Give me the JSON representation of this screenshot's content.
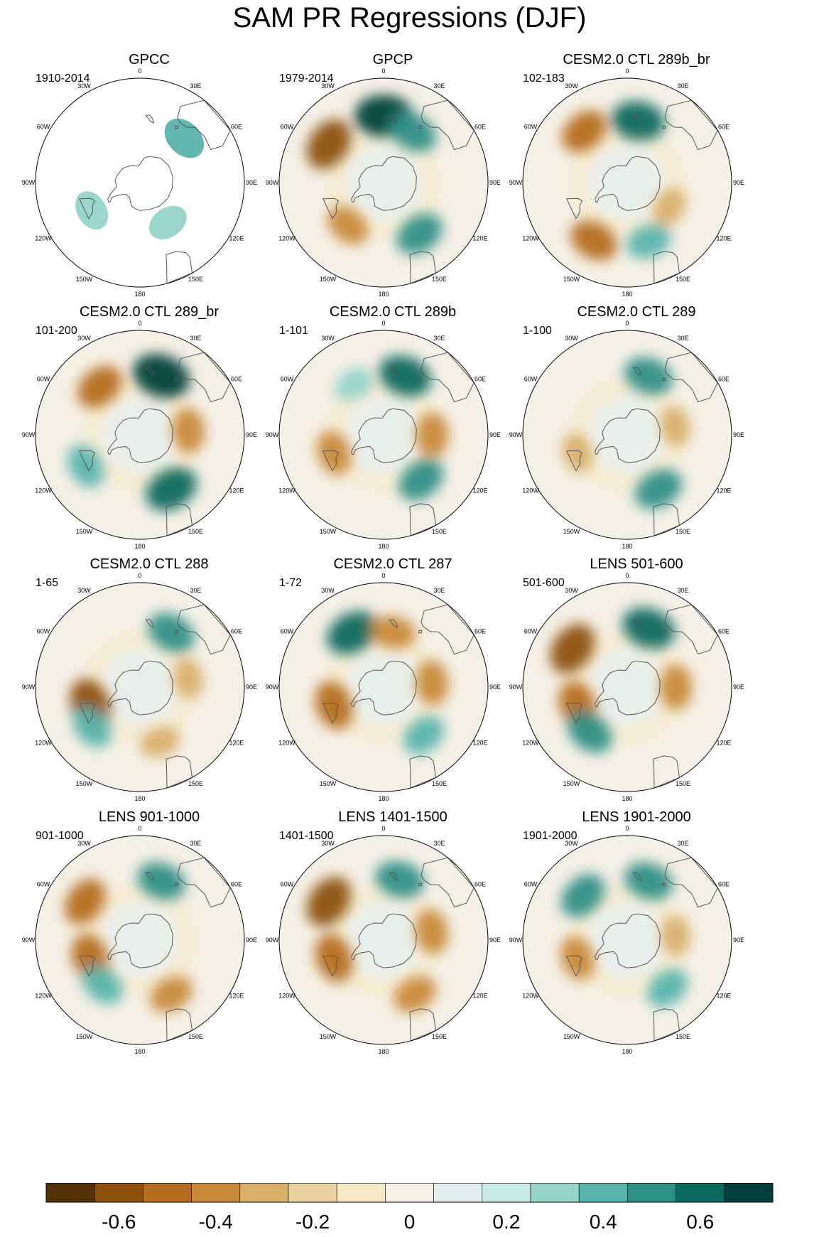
{
  "figure": {
    "title": "SAM PR Regressions (DJF)"
  },
  "chart_data": {
    "type": "heatmap",
    "projection": "south polar stereographic",
    "variable": "PR",
    "season": "DJF",
    "longitude_labels": [
      "0",
      "30E",
      "60E",
      "90E",
      "120E",
      "150E",
      "180",
      "150W",
      "120W",
      "90W",
      "60W",
      "30W"
    ],
    "colorbar": {
      "levels": [
        -0.7,
        -0.6,
        -0.5,
        -0.4,
        -0.3,
        -0.2,
        -0.1,
        0,
        0.1,
        0.2,
        0.3,
        0.4,
        0.5,
        0.6,
        0.7
      ],
      "tick_labels": [
        "-0.6",
        "-0.4",
        "-0.2",
        "0",
        "0.2",
        "0.4",
        "0.6"
      ],
      "tick_values": [
        -0.6,
        -0.4,
        -0.2,
        0,
        0.2,
        0.4,
        0.6
      ],
      "colors": [
        "#543005",
        "#8c510a",
        "#b56d20",
        "#c8893a",
        "#d8b06c",
        "#ead3a0",
        "#f6e8c3",
        "#f5f0e6",
        "#e0efee",
        "#c7eae5",
        "#96d4ca",
        "#5ab4ac",
        "#2e8f85",
        "#0a6a5e",
        "#01403a"
      ]
    },
    "panels": [
      {
        "name": "GPCC",
        "period": "1910-2014",
        "land_only": true,
        "features": [
          {
            "lon": 35,
            "lat": -55,
            "value": 0.3
          },
          {
            "lon": -60,
            "lat": -50,
            "value": 0.3
          },
          {
            "lon": 135,
            "lat": -45,
            "value": 0.4
          }
        ]
      },
      {
        "name": "GPCP",
        "period": "1979-2014",
        "features": [
          {
            "lon": 180,
            "lat": -42,
            "value": 0.7
          },
          {
            "lon": 35,
            "lat": -45,
            "value": 0.5
          },
          {
            "lon": -125,
            "lat": -42,
            "value": -0.6
          },
          {
            "lon": -40,
            "lat": -50,
            "value": -0.4
          },
          {
            "lon": 150,
            "lat": -48,
            "value": 0.5
          }
        ]
      },
      {
        "name": "CESM2.0 CTL 289b_br",
        "period": "102-183",
        "features": [
          {
            "lon": 170,
            "lat": -45,
            "value": 0.6
          },
          {
            "lon": -140,
            "lat": -42,
            "value": -0.5
          },
          {
            "lon": -30,
            "lat": -42,
            "value": -0.5
          },
          {
            "lon": 20,
            "lat": -45,
            "value": 0.4
          },
          {
            "lon": 60,
            "lat": -55,
            "value": -0.3
          }
        ]
      },
      {
        "name": "CESM2.0 CTL 289_br",
        "period": "101-200",
        "features": [
          {
            "lon": 160,
            "lat": -45,
            "value": 0.7
          },
          {
            "lon": 30,
            "lat": -45,
            "value": 0.6
          },
          {
            "lon": -140,
            "lat": -45,
            "value": -0.5
          },
          {
            "lon": 95,
            "lat": -55,
            "value": -0.4
          },
          {
            "lon": -60,
            "lat": -45,
            "value": 0.4
          }
        ]
      },
      {
        "name": "CESM2.0 CTL 289b",
        "period": "1-101",
        "features": [
          {
            "lon": 160,
            "lat": -45,
            "value": 0.6
          },
          {
            "lon": 40,
            "lat": -48,
            "value": 0.5
          },
          {
            "lon": 90,
            "lat": -55,
            "value": -0.4
          },
          {
            "lon": -70,
            "lat": -52,
            "value": -0.4
          },
          {
            "lon": -150,
            "lat": -48,
            "value": 0.3
          }
        ]
      },
      {
        "name": "CESM2.0 CTL 289",
        "period": "1-100",
        "features": [
          {
            "lon": 160,
            "lat": -45,
            "value": 0.5
          },
          {
            "lon": 30,
            "lat": -45,
            "value": 0.5
          },
          {
            "lon": -70,
            "lat": -52,
            "value": -0.3
          },
          {
            "lon": 100,
            "lat": -55,
            "value": -0.3
          }
        ]
      },
      {
        "name": "CESM2.0 CTL 288",
        "period": "1-65",
        "features": [
          {
            "lon": 150,
            "lat": -45,
            "value": 0.5
          },
          {
            "lon": -70,
            "lat": -52,
            "value": -0.6
          },
          {
            "lon": 20,
            "lat": -48,
            "value": -0.3
          },
          {
            "lon": -50,
            "lat": -45,
            "value": 0.4
          },
          {
            "lon": 100,
            "lat": -55,
            "value": -0.3
          }
        ]
      },
      {
        "name": "CESM2.0 CTL 287",
        "period": "1-72",
        "features": [
          {
            "lon": -150,
            "lat": -45,
            "value": 0.6
          },
          {
            "lon": 170,
            "lat": -50,
            "value": -0.4
          },
          {
            "lon": -70,
            "lat": -52,
            "value": -0.5
          },
          {
            "lon": 40,
            "lat": -45,
            "value": 0.4
          },
          {
            "lon": 95,
            "lat": -55,
            "value": -0.4
          }
        ]
      },
      {
        "name": "LENS 501-600",
        "period": "501-600",
        "features": [
          {
            "lon": 160,
            "lat": -45,
            "value": 0.6
          },
          {
            "lon": -125,
            "lat": -42,
            "value": -0.6
          },
          {
            "lon": -70,
            "lat": -52,
            "value": -0.5
          },
          {
            "lon": -40,
            "lat": -48,
            "value": 0.5
          },
          {
            "lon": 90,
            "lat": -55,
            "value": -0.4
          }
        ]
      },
      {
        "name": "LENS 901-1000",
        "period": "901-1000",
        "features": [
          {
            "lon": -125,
            "lat": -42,
            "value": -0.5
          },
          {
            "lon": 160,
            "lat": -45,
            "value": 0.5
          },
          {
            "lon": -70,
            "lat": -52,
            "value": -0.5
          },
          {
            "lon": 30,
            "lat": -45,
            "value": -0.4
          },
          {
            "lon": -40,
            "lat": -48,
            "value": 0.4
          }
        ]
      },
      {
        "name": "LENS 1401-1500",
        "period": "1401-1500",
        "features": [
          {
            "lon": -125,
            "lat": -42,
            "value": -0.6
          },
          {
            "lon": 165,
            "lat": -45,
            "value": 0.5
          },
          {
            "lon": -70,
            "lat": -52,
            "value": -0.5
          },
          {
            "lon": 30,
            "lat": -45,
            "value": -0.4
          },
          {
            "lon": 100,
            "lat": -55,
            "value": -0.4
          }
        ]
      },
      {
        "name": "LENS 1901-2000",
        "period": "1901-2000",
        "features": [
          {
            "lon": 160,
            "lat": -45,
            "value": 0.5
          },
          {
            "lon": -135,
            "lat": -45,
            "value": 0.5
          },
          {
            "lon": -70,
            "lat": -52,
            "value": -0.4
          },
          {
            "lon": 40,
            "lat": -45,
            "value": 0.4
          },
          {
            "lon": 95,
            "lat": -55,
            "value": -0.3
          }
        ]
      }
    ]
  }
}
